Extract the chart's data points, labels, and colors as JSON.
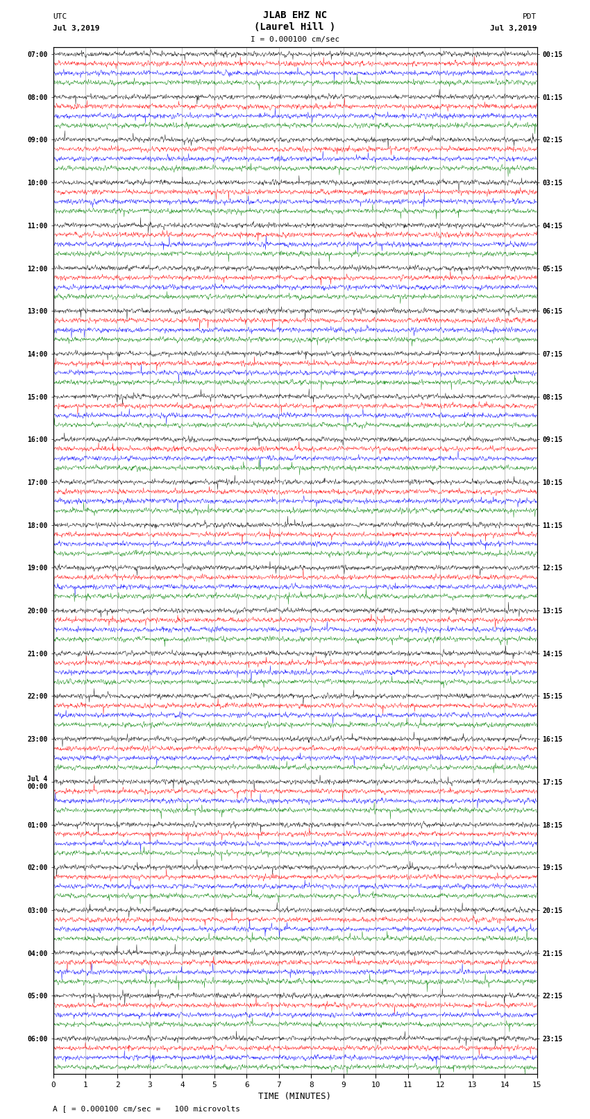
{
  "title_line1": "JLAB EHZ NC",
  "title_line2": "(Laurel Hill )",
  "scale_label": "I = 0.000100 cm/sec",
  "utc_label": "UTC",
  "utc_date": "Jul 3,2019",
  "pdt_label": "PDT",
  "pdt_date": "Jul 3,2019",
  "bottom_label": "A [ = 0.000100 cm/sec =   100 microvolts",
  "xlabel": "TIME (MINUTES)",
  "left_times": [
    "07:00",
    "08:00",
    "09:00",
    "10:00",
    "11:00",
    "12:00",
    "13:00",
    "14:00",
    "15:00",
    "16:00",
    "17:00",
    "18:00",
    "19:00",
    "20:00",
    "21:00",
    "22:00",
    "23:00",
    "Jul 4\n00:00",
    "01:00",
    "02:00",
    "03:00",
    "04:00",
    "05:00",
    "06:00"
  ],
  "right_times": [
    "00:15",
    "01:15",
    "02:15",
    "03:15",
    "04:15",
    "05:15",
    "06:15",
    "07:15",
    "08:15",
    "09:15",
    "10:15",
    "11:15",
    "12:15",
    "13:15",
    "14:15",
    "15:15",
    "16:15",
    "17:15",
    "18:15",
    "19:15",
    "20:15",
    "21:15",
    "22:15",
    "23:15"
  ],
  "n_rows": 24,
  "traces_per_row": 4,
  "trace_colors": [
    "black",
    "red",
    "blue",
    "green"
  ],
  "bg_color": "white",
  "minutes_per_row": 15,
  "xlim": [
    0,
    15
  ],
  "xticks": [
    0,
    1,
    2,
    3,
    4,
    5,
    6,
    7,
    8,
    9,
    10,
    11,
    12,
    13,
    14,
    15
  ],
  "noise_amplitude": 0.3,
  "spike_probability": 0.004,
  "spike_amplitude": 1.2,
  "vline_color": "#888888",
  "vline_alpha": 0.7,
  "vline_lw": 0.5
}
